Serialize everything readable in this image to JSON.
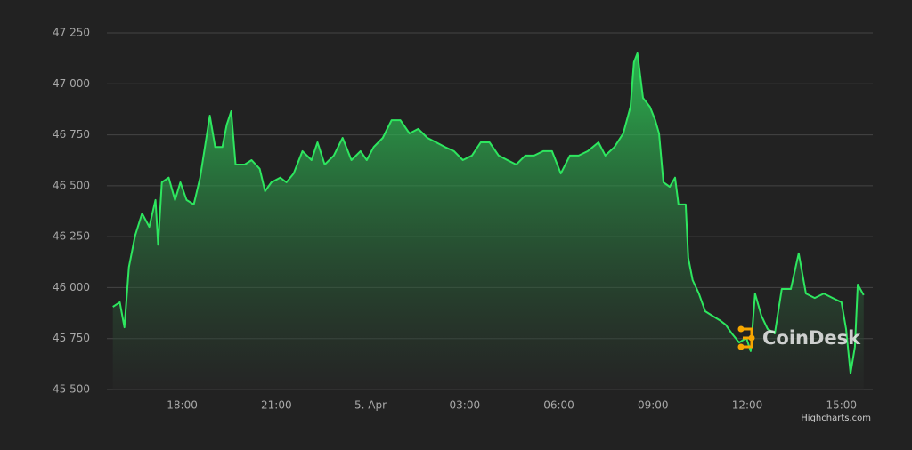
{
  "chart_data": {
    "type": "area",
    "x": [
      15.79,
      16.01,
      16.16,
      16.3,
      16.5,
      16.72,
      16.95,
      17.15,
      17.23,
      17.35,
      17.57,
      17.77,
      17.94,
      18.14,
      18.37,
      18.57,
      18.77,
      18.88,
      19.05,
      19.28,
      19.42,
      19.56,
      19.7,
      19.99,
      20.21,
      20.47,
      20.64,
      20.84,
      21.12,
      21.32,
      21.55,
      21.83,
      22.12,
      22.31,
      22.54,
      22.83,
      23.11,
      23.39,
      23.68,
      23.88,
      24.1,
      24.39,
      24.67,
      24.95,
      25.24,
      25.52,
      25.81,
      26.09,
      26.37,
      26.66,
      26.94,
      27.23,
      27.51,
      27.79,
      28.08,
      28.36,
      28.64,
      28.93,
      29.21,
      29.5,
      29.78,
      30.06,
      30.35,
      30.63,
      30.92,
      31.26,
      31.48,
      31.77,
      32.05,
      32.28,
      32.39,
      32.5,
      32.68,
      32.9,
      33.07,
      33.19,
      33.33,
      33.53,
      33.7,
      33.81,
      34.04,
      34.12,
      34.26,
      34.46,
      34.66,
      34.89,
      35.12,
      35.31,
      35.51,
      35.74,
      35.97,
      36.11,
      36.25,
      36.45,
      36.65,
      36.88,
      37.1,
      37.39,
      37.64,
      37.87,
      38.15,
      38.44,
      38.72,
      39.0,
      39.15,
      39.29,
      39.43,
      39.52,
      39.71
    ],
    "series": [
      {
        "color": "#2ee65f",
        "values": [
          45906,
          45928,
          45805,
          46100,
          46255,
          46364,
          46298,
          46430,
          46210,
          46517,
          46540,
          46430,
          46517,
          46430,
          46408,
          46540,
          46735,
          46844,
          46690,
          46690,
          46800,
          46866,
          46604,
          46604,
          46626,
          46583,
          46473,
          46517,
          46540,
          46517,
          46560,
          46670,
          46626,
          46713,
          46604,
          46648,
          46735,
          46626,
          46670,
          46626,
          46690,
          46735,
          46822,
          46822,
          46757,
          46779,
          46735,
          46713,
          46690,
          46670,
          46626,
          46648,
          46713,
          46713,
          46648,
          46626,
          46604,
          46648,
          46648,
          46670,
          46670,
          46560,
          46648,
          46648,
          46670,
          46713,
          46648,
          46690,
          46757,
          46887,
          47106,
          47150,
          46931,
          46887,
          46822,
          46757,
          46517,
          46495,
          46540,
          46408,
          46408,
          46146,
          46037,
          45971,
          45884,
          45862,
          45840,
          45818,
          45775,
          45731,
          45753,
          45688,
          45971,
          45862,
          45797,
          45775,
          45993,
          45993,
          46168,
          45971,
          45949,
          45971,
          45949,
          45928,
          45797,
          45579,
          45709,
          46015,
          45963
        ]
      }
    ],
    "xlim": [
      15.6,
      40
    ],
    "xticks": [
      {
        "value": 18,
        "label": "18:00"
      },
      {
        "value": 21,
        "label": "21:00"
      },
      {
        "value": 24,
        "label": "5. Apr"
      },
      {
        "value": 27,
        "label": "03:00"
      },
      {
        "value": 30,
        "label": "06:00"
      },
      {
        "value": 33,
        "label": "09:00"
      },
      {
        "value": 36,
        "label": "12:00"
      },
      {
        "value": 39,
        "label": "15:00"
      }
    ],
    "ylim": [
      45500,
      47250
    ],
    "yticks": [
      {
        "value": 45500,
        "label": "45 500"
      },
      {
        "value": 45750,
        "label": "45 750"
      },
      {
        "value": 46000,
        "label": "46 000"
      },
      {
        "value": 46250,
        "label": "46 250"
      },
      {
        "value": 46500,
        "label": "46 500"
      },
      {
        "value": 46750,
        "label": "46 750"
      },
      {
        "value": 47000,
        "label": "47 000"
      },
      {
        "value": 47250,
        "label": "47 250"
      }
    ],
    "grid": true,
    "watermark": "CoinDesk",
    "credits": "Highcharts.com"
  }
}
